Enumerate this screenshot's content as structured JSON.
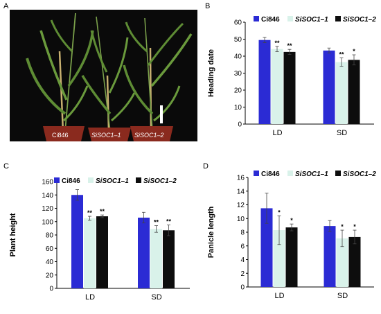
{
  "panels": {
    "a": "A",
    "b": "B",
    "c": "C",
    "d": "D"
  },
  "photo": {
    "labels": [
      "Ci846",
      "SiSOC1–1",
      "SiSOC1–2"
    ],
    "colors": {
      "background": "#0a0a0a",
      "pot": "#8a2a1e",
      "leaf": "#5e8c34",
      "stem": "#c8b070",
      "scale_bar": "#ffffff"
    }
  },
  "colors": {
    "Ci846": "#2b2bd4",
    "SiSOC1–1": "#d9f2ea",
    "SiSOC1–2": "#0d0d0d"
  },
  "chart_data": [
    {
      "type": "bar",
      "panel": "B",
      "categories": [
        "LD",
        "SD"
      ],
      "ylabel": "Heading date",
      "ylim": [
        0,
        60
      ],
      "yticks": [
        0,
        10,
        20,
        30,
        40,
        50,
        60
      ],
      "legend_position": "top",
      "series": [
        {
          "name": "Ci846",
          "values": [
            49.5,
            43.3
          ],
          "errors": [
            1.5,
            1.5
          ],
          "marks": [
            "",
            ""
          ]
        },
        {
          "name": "SiSOC1–1",
          "values": [
            44.2,
            36.5
          ],
          "errors": [
            1.5,
            2.5
          ],
          "marks": [
            "**",
            "**"
          ]
        },
        {
          "name": "SiSOC1–2",
          "values": [
            42.5,
            37.8
          ],
          "errors": [
            1.5,
            3.0
          ],
          "marks": [
            "**",
            "*"
          ]
        }
      ]
    },
    {
      "type": "bar",
      "panel": "C",
      "categories": [
        "LD",
        "SD"
      ],
      "ylabel": "Plant height",
      "ylim": [
        0,
        160
      ],
      "yticks": [
        0,
        20,
        40,
        60,
        80,
        100,
        120,
        140,
        160
      ],
      "legend_position": "top",
      "series": [
        {
          "name": "Ci846",
          "values": [
            140,
            106
          ],
          "errors": [
            8,
            8
          ],
          "marks": [
            "",
            ""
          ]
        },
        {
          "name": "SiSOC1–1",
          "values": [
            105,
            89
          ],
          "errors": [
            3,
            5
          ],
          "marks": [
            "**",
            "**"
          ]
        },
        {
          "name": "SiSOC1–2",
          "values": [
            108,
            87
          ],
          "errors": [
            2,
            8
          ],
          "marks": [
            "**",
            "**"
          ]
        }
      ]
    },
    {
      "type": "bar",
      "panel": "D",
      "categories": [
        "LD",
        "SD"
      ],
      "ylabel": "Panicle length",
      "ylim": [
        0,
        16
      ],
      "yticks": [
        0,
        2,
        4,
        6,
        8,
        10,
        12,
        14,
        16
      ],
      "legend_position": "top",
      "series": [
        {
          "name": "Ci846",
          "values": [
            11.5,
            8.9
          ],
          "errors": [
            2.2,
            0.8
          ],
          "marks": [
            "",
            ""
          ]
        },
        {
          "name": "SiSOC1–1",
          "values": [
            8.3,
            7.1
          ],
          "errors": [
            2.1,
            1.2
          ],
          "marks": [
            "*",
            "*"
          ]
        },
        {
          "name": "SiSOC1–2",
          "values": [
            8.7,
            7.3
          ],
          "errors": [
            0.5,
            1.0
          ],
          "marks": [
            "*",
            "*"
          ]
        }
      ]
    }
  ]
}
